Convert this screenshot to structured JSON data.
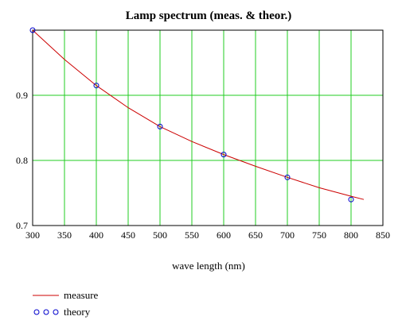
{
  "chart_data": {
    "type": "line",
    "title": "Lamp spectrum (meas. & theor.)",
    "xlabel": "wave length (nm)",
    "ylabel": "",
    "xlim": [
      300,
      850
    ],
    "ylim": [
      0.7,
      1.0
    ],
    "x_ticks": [
      300,
      350,
      400,
      450,
      500,
      550,
      600,
      650,
      700,
      750,
      800,
      850
    ],
    "y_ticks": [
      0.7,
      0.8,
      0.9
    ],
    "grid": true,
    "legend_position": "bottom-left",
    "series": [
      {
        "name": "measure",
        "style": "line",
        "color": "#cc0000",
        "x": [
          300,
          350,
          400,
          450,
          500,
          550,
          600,
          650,
          700,
          750,
          800,
          820
        ],
        "y": [
          1.0,
          0.955,
          0.915,
          0.881,
          0.852,
          0.829,
          0.809,
          0.791,
          0.774,
          0.758,
          0.745,
          0.74
        ]
      },
      {
        "name": "theory",
        "style": "markers",
        "color": "#0000cc",
        "marker": "open-circle",
        "x": [
          300,
          400,
          500,
          600,
          700,
          800
        ],
        "y": [
          1.0,
          0.915,
          0.852,
          0.809,
          0.774,
          0.74
        ]
      }
    ]
  },
  "colors": {
    "grid": "#22cc22",
    "frame": "#000000"
  }
}
